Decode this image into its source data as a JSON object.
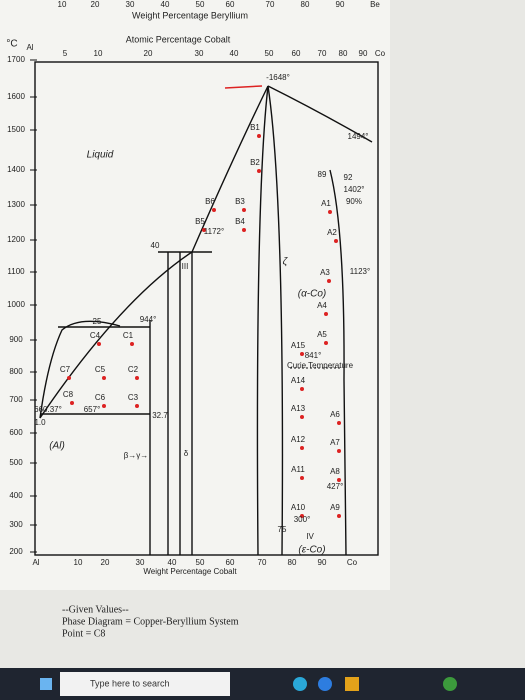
{
  "top_axis": {
    "ticks": [
      "10",
      "20",
      "30",
      "40",
      "50",
      "60",
      "70",
      "80",
      "90",
      "Be"
    ],
    "title": "Weight Percentage Beryllium"
  },
  "atomic_axis": {
    "title": "Atomic Percentage Cobalt",
    "ticks": [
      "5",
      "10",
      "20",
      "30",
      "40",
      "50",
      "60",
      "70",
      "80",
      "90",
      "Co"
    ]
  },
  "left_axis": {
    "unit": "°C",
    "origin": "Al",
    "ticks": [
      "1700",
      "1600",
      "1500",
      "1400",
      "1300",
      "1200",
      "1100",
      "1000",
      "900",
      "800",
      "700",
      "600",
      "500",
      "400",
      "300",
      "200"
    ]
  },
  "labels": [
    "-1648°",
    "B1",
    "1494°",
    "Liquid",
    "B2",
    "89",
    "92",
    "1402°",
    "B6",
    "B3",
    "A1",
    "90%",
    "B5",
    "B4",
    "1172°",
    "40",
    "A2",
    "III",
    "ζ",
    "A3",
    "1123°",
    "(α-Co)",
    "A4",
    "944°",
    "25",
    "C4",
    "C1",
    "A5",
    "A15",
    "841°",
    "Curie Temperature",
    "C7",
    "C5",
    "C2",
    "A14",
    "C8",
    "C6",
    "C3",
    "660.37°",
    "657°",
    "32.7",
    "A13",
    "A6",
    "1.0",
    "A12",
    "A7",
    "(Al)",
    "β→γ→",
    "δ",
    "A11",
    "A8",
    "427°",
    "A10",
    "A9",
    "300°",
    "75",
    "IV",
    "(ε-Co)"
  ],
  "bottom_axis": {
    "ticks": [
      "Al",
      "10",
      "20",
      "30",
      "40",
      "50",
      "60",
      "70",
      "80",
      "90",
      "Co"
    ],
    "title": "Weight Percentage Cobalt"
  },
  "notes": [
    "--Given Values--",
    "Phase Diagram = Copper-Beryllium System",
    "Point = C8"
  ],
  "taskbar": {
    "search": "Type here to search"
  }
}
